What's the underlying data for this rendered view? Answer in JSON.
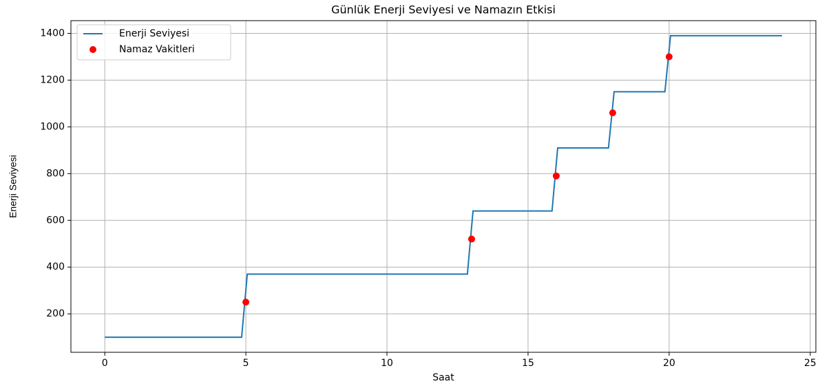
{
  "chart_data": {
    "type": "line",
    "title": "Günlük Enerji Seviyesi ve Namazın Etkisi",
    "xlabel": "Saat",
    "ylabel": "Enerji Seviyesi",
    "series": [
      {
        "name": "Enerji Seviyesi",
        "color": "#1f77b4",
        "type": "line",
        "x": [
          0,
          4.85,
          5.05,
          12.85,
          13.05,
          15.85,
          16.05,
          17.85,
          18.05,
          19.85,
          20.05,
          24
        ],
        "values": [
          100,
          100,
          370,
          370,
          640,
          640,
          910,
          910,
          1150,
          1150,
          1390,
          1390
        ]
      },
      {
        "name": "Namaz Vakitleri",
        "color": "#ff0000",
        "type": "scatter",
        "x": [
          5,
          13,
          16,
          18,
          20
        ],
        "values": [
          250,
          520,
          790,
          1060,
          1300
        ]
      }
    ],
    "xlim": [
      -1.2,
      25.2
    ],
    "xticks": [
      0,
      5,
      10,
      15,
      20,
      25
    ],
    "ylim": [
      35.5,
      1454.5
    ],
    "yticks": [
      200,
      400,
      600,
      800,
      1000,
      1200,
      1400
    ],
    "grid": true,
    "legend": "upper left"
  }
}
